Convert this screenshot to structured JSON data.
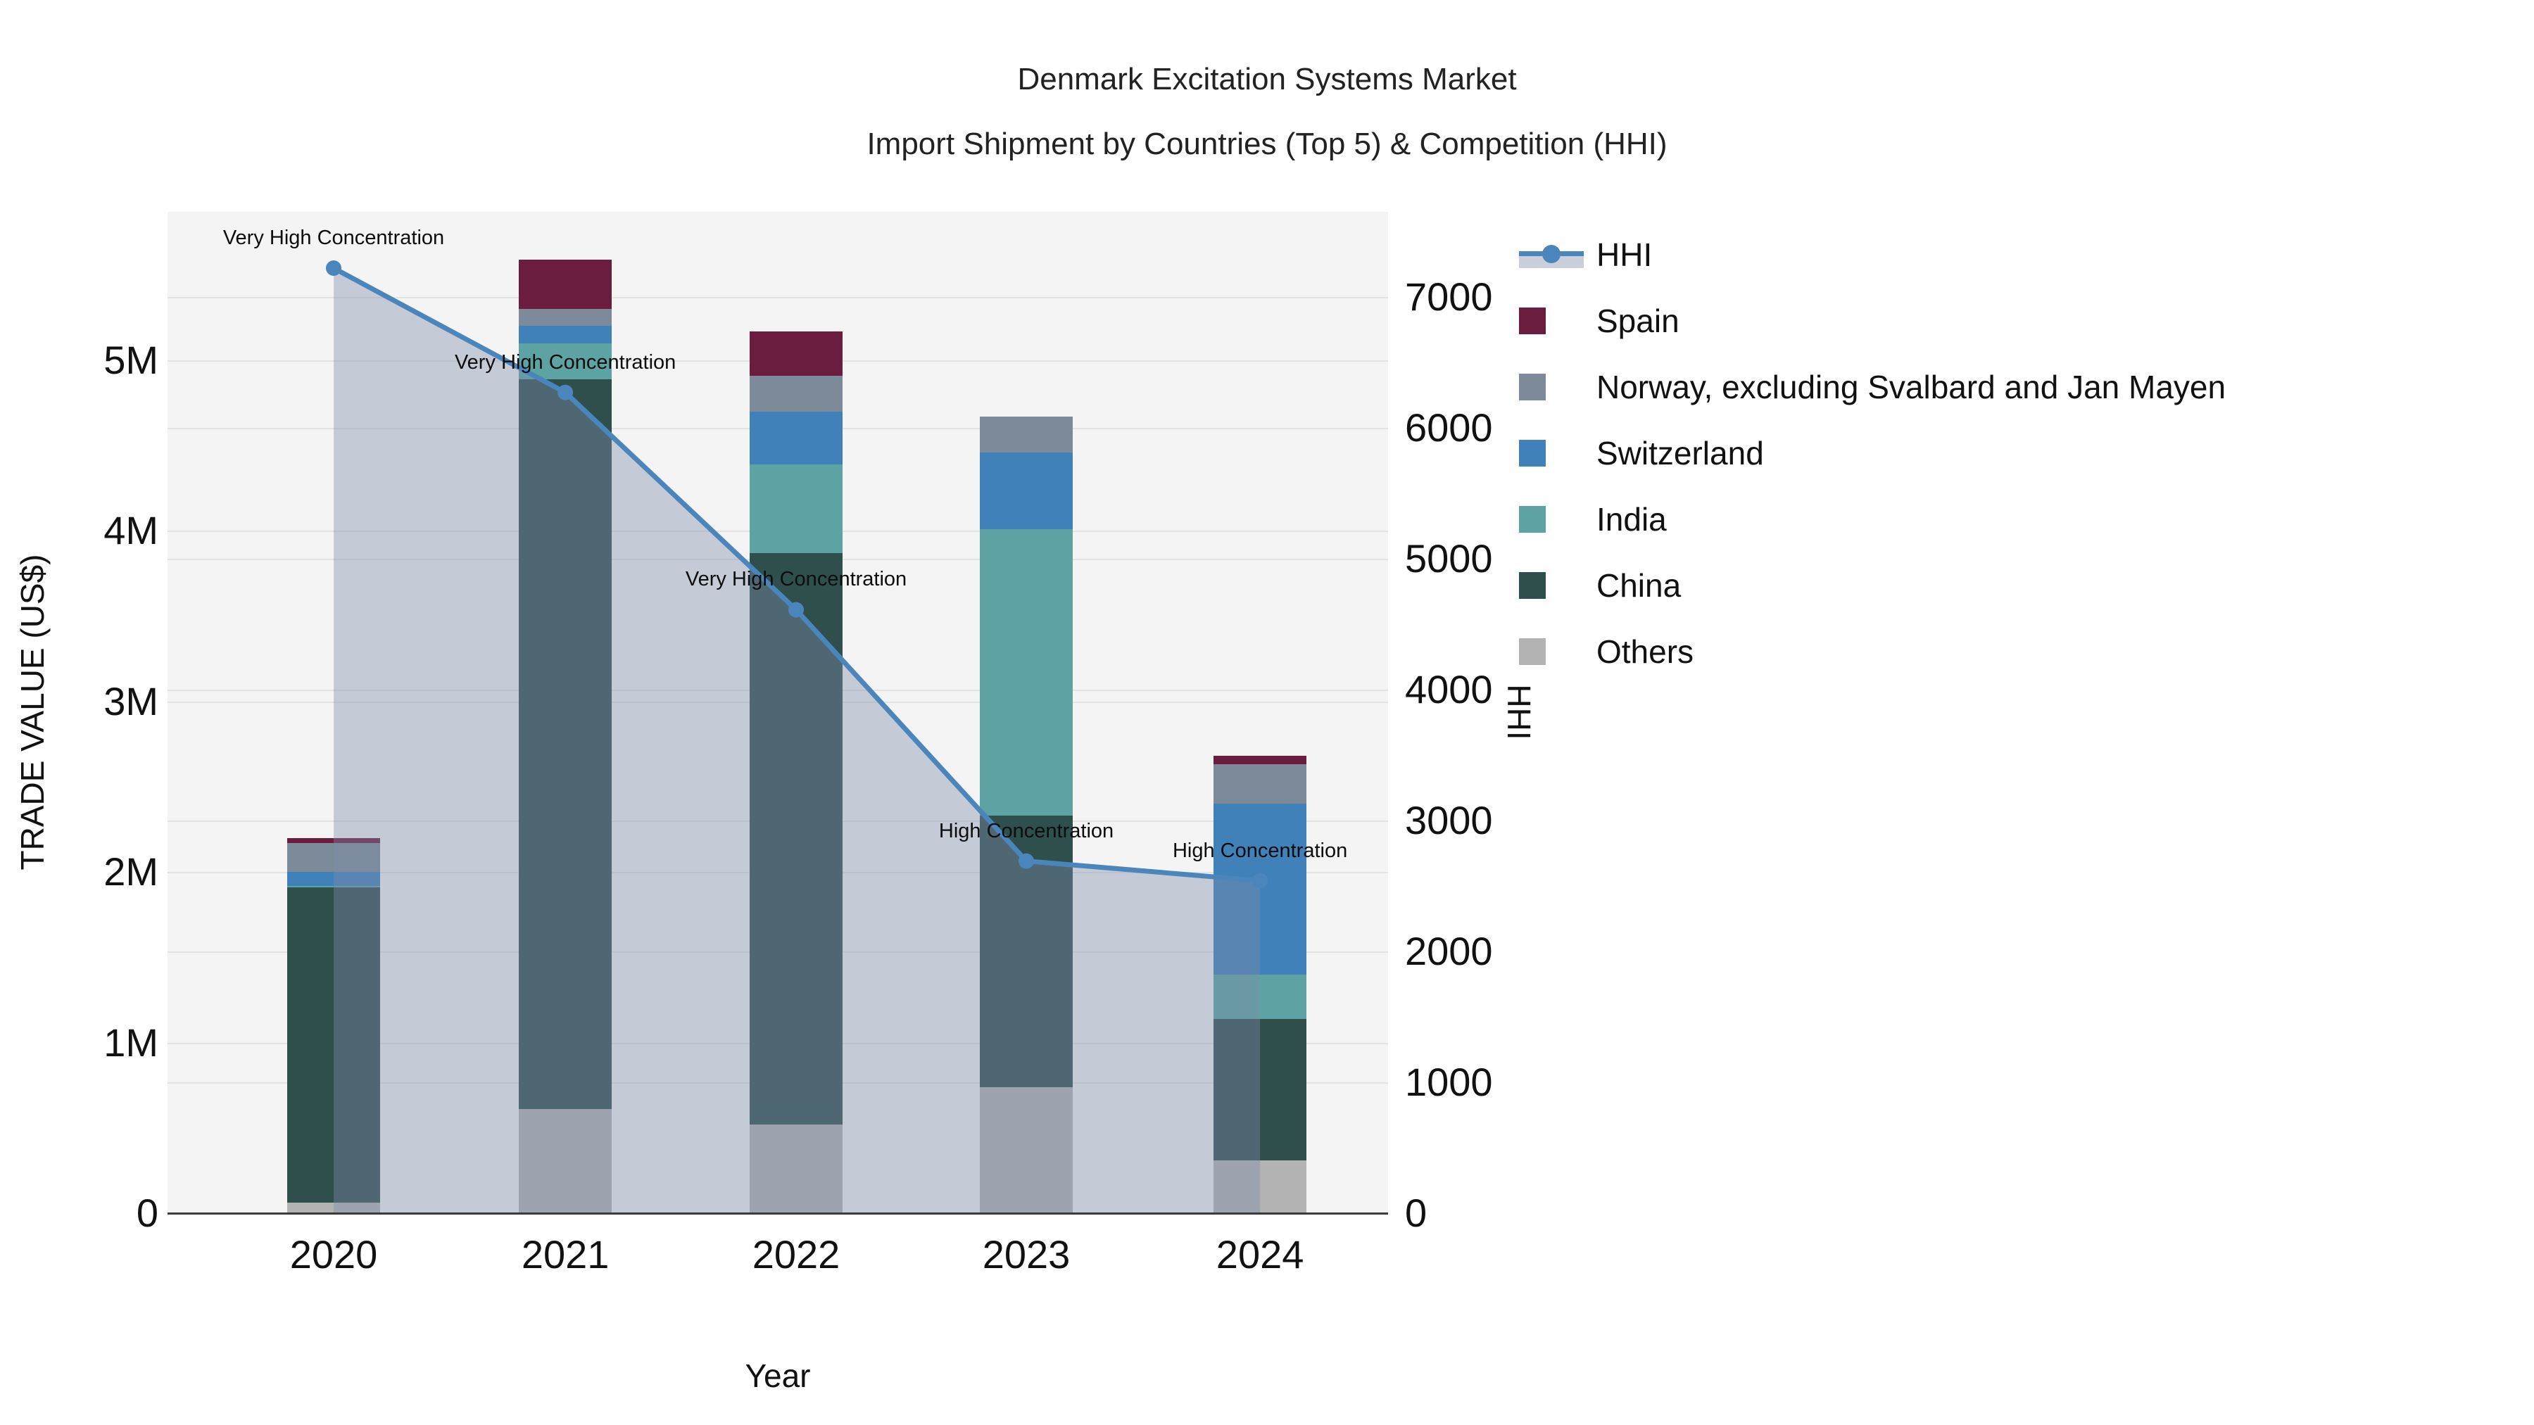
{
  "title": "Denmark Excitation Systems Market",
  "subtitle": "Import Shipment by Countries (Top 5) & Competition (HHI)",
  "axes": {
    "x": {
      "title": "Year",
      "ticks": [
        "2020",
        "2021",
        "2022",
        "2023",
        "2024"
      ]
    },
    "y_left": {
      "title": "TRADE VALUE (US$)",
      "tick_values_M": [
        0,
        1,
        2,
        3,
        4,
        5
      ],
      "tick_labels": [
        "0",
        "1M",
        "2M",
        "3M",
        "4M",
        "5M"
      ],
      "max_M": 5.87
    },
    "y_right": {
      "title": "HHI",
      "tick_values": [
        0,
        1000,
        2000,
        3000,
        4000,
        5000,
        6000,
        7000
      ],
      "tick_labels": [
        "0",
        "1000",
        "2000",
        "3000",
        "4000",
        "5000",
        "6000",
        "7000"
      ],
      "max": 7650
    }
  },
  "chart_data": {
    "type": "bar",
    "subtype": "stacked-bars-with-line",
    "categories": [
      "2020",
      "2021",
      "2022",
      "2023",
      "2024"
    ],
    "value_unit": "US$ millions",
    "series": [
      {
        "name": "Others",
        "color": "#b3b3b3",
        "values": [
          0.06,
          0.61,
          0.52,
          0.74,
          0.31
        ]
      },
      {
        "name": "China",
        "color": "#2f4f4d",
        "values": [
          1.85,
          4.28,
          3.35,
          1.59,
          0.83
        ]
      },
      {
        "name": "India",
        "color": "#5ea3a3",
        "values": [
          0.01,
          0.21,
          0.52,
          1.68,
          0.26
        ]
      },
      {
        "name": "Switzerland",
        "color": "#4181ba",
        "values": [
          0.08,
          0.1,
          0.31,
          0.45,
          1.0
        ]
      },
      {
        "name": "Norway, excluding Svalbard and Jan Mayen",
        "color": "#7d8a99",
        "values": [
          0.17,
          0.1,
          0.21,
          0.21,
          0.23
        ]
      },
      {
        "name": "Spain",
        "color": "#6b1d3f",
        "values": [
          0.03,
          0.29,
          0.26,
          0.0,
          0.05
        ]
      }
    ],
    "line": {
      "name": "HHI",
      "color": "#4a86bc",
      "fill_color": "rgba(125,141,169,0.40)",
      "values": [
        7220,
        6270,
        4610,
        2690,
        2540
      ]
    },
    "annotations": [
      {
        "category": "2020",
        "text": "Very High Concentration"
      },
      {
        "category": "2021",
        "text": "Very High Concentration"
      },
      {
        "category": "2022",
        "text": "Very High Concentration"
      },
      {
        "category": "2023",
        "text": "High Concentration"
      },
      {
        "category": "2024",
        "text": "High Concentration"
      }
    ],
    "legend_position": "right",
    "grid": true
  },
  "legend": {
    "items": [
      {
        "label": "HHI",
        "type": "line"
      },
      {
        "label": "Spain",
        "type": "square",
        "color": "#6b1d3f"
      },
      {
        "label": "Norway, excluding Svalbard and Jan Mayen",
        "type": "square",
        "color": "#7d8a99"
      },
      {
        "label": "Switzerland",
        "type": "square",
        "color": "#4181ba"
      },
      {
        "label": "India",
        "type": "square",
        "color": "#5ea3a3"
      },
      {
        "label": "China",
        "type": "square",
        "color": "#2f4f4d"
      },
      {
        "label": "Others",
        "type": "square",
        "color": "#b3b3b3"
      }
    ]
  }
}
